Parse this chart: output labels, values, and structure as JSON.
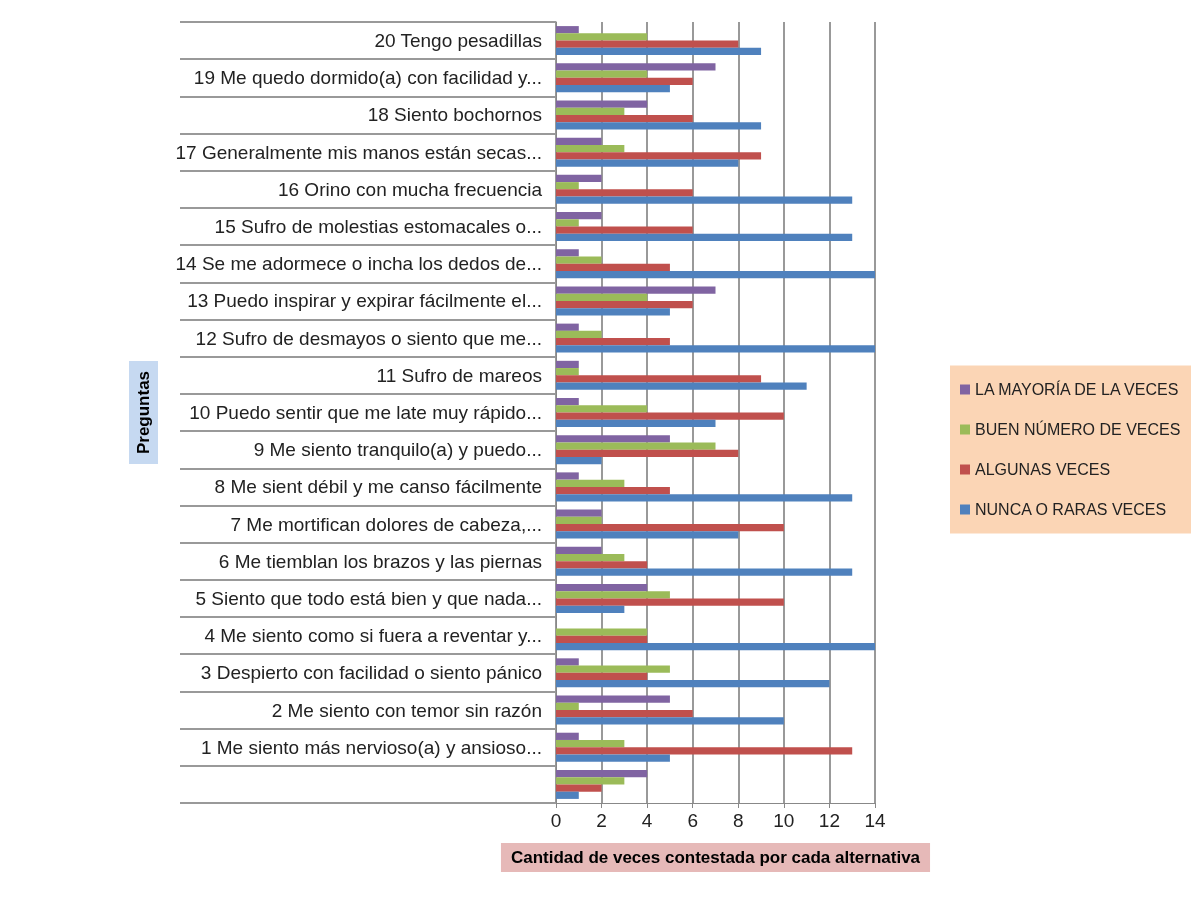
{
  "chart_data": {
    "type": "bar",
    "orientation": "horizontal",
    "xlabel": "Cantidad de veces contestada por cada alternativa",
    "ylabel": "Preguntas",
    "categories": [
      "20 Tengo pesadillas",
      "19 Me quedo dormido(a) con facilidad y...",
      "18 Siento bochornos",
      "17 Generalmente mis manos están secas...",
      "16 Orino con mucha frecuencia",
      "15 Sufro de molestias estomacales o...",
      "14 Se me adormece o incha los dedos de...",
      "13 Puedo inspirar y expirar fácilmente el...",
      "12 Sufro de desmayos o siento que me...",
      "11 Sufro de mareos",
      "10 Puedo sentir que me late muy rápido...",
      "9 Me siento tranquilo(a) y puedo...",
      "8 Me sient débil y me canso fácilmente",
      "7 Me mortifican dolores de cabeza,...",
      "6 Me tiemblan los brazos y las piernas",
      "5 Siento que todo está bien y que nada...",
      "4 Me siento como si fuera a reventar y...",
      "3 Despierto con facilidad o siento pánico",
      "2 Me siento con temor sin razón",
      "1 Me siento más nervioso(a) y ansioso...",
      null
    ],
    "series": [
      {
        "name": "LA MAYORÍA DE LA VECES",
        "color": "#8064a2",
        "values": [
          1,
          7,
          4,
          2,
          2,
          2,
          1,
          7,
          1,
          1,
          1,
          5,
          1,
          2,
          2,
          4,
          0,
          1,
          5,
          1,
          4
        ]
      },
      {
        "name": "BUEN NÚMERO DE VECES",
        "color": "#9bbb59",
        "values": [
          4,
          4,
          3,
          3,
          1,
          1,
          2,
          4,
          2,
          1,
          4,
          7,
          3,
          2,
          3,
          5,
          4,
          5,
          1,
          3,
          3
        ]
      },
      {
        "name": "ALGUNAS VECES",
        "color": "#c0504d",
        "values": [
          8,
          6,
          6,
          9,
          6,
          6,
          5,
          6,
          5,
          9,
          10,
          8,
          5,
          10,
          4,
          10,
          4,
          4,
          6,
          13,
          2
        ]
      },
      {
        "name": "NUNCA O RARAS VECES",
        "color": "#4f81bd",
        "values": [
          9,
          5,
          9,
          8,
          13,
          13,
          14,
          5,
          14,
          11,
          7,
          2,
          13,
          8,
          13,
          3,
          14,
          12,
          10,
          5,
          1
        ]
      }
    ],
    "xlim": [
      0,
      14
    ],
    "xticks": [
      0,
      2,
      4,
      6,
      8,
      10,
      12,
      14
    ],
    "grid": "x",
    "legend": "right"
  }
}
